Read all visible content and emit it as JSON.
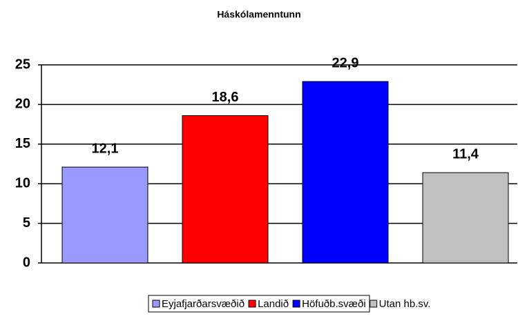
{
  "chart_data": {
    "type": "bar",
    "title": "Háskólamenntunn",
    "categories": [
      "Eyjafjarðarsvæðið",
      "Landið",
      "Höfuðb.svæði",
      "Utan hb.sv."
    ],
    "values": [
      12.1,
      18.6,
      22.9,
      11.4
    ],
    "value_labels": [
      "12,1",
      "18,6",
      "22,9",
      "11,4"
    ],
    "colors": [
      "#9999ff",
      "#ff0000",
      "#0000ff",
      "#c0c0c0"
    ],
    "ylim": [
      0,
      25
    ],
    "yticks": [
      0,
      5,
      10,
      15,
      20,
      25
    ],
    "grid": true,
    "legend": "bottom"
  }
}
